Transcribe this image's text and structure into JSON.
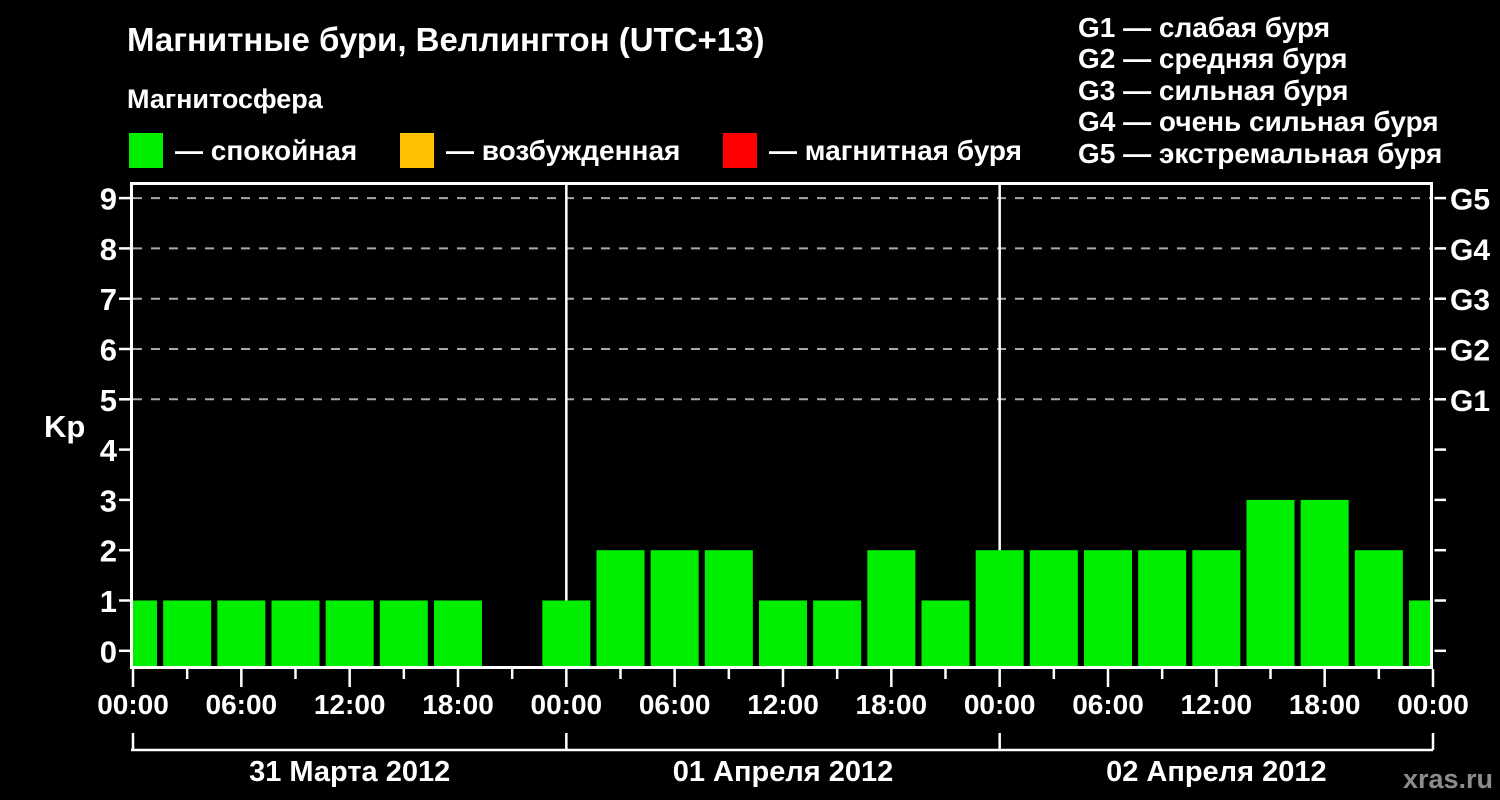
{
  "title": "Магнитные бури, Веллингтон (UTC+13)",
  "subtitle": "Магнитосфера",
  "legend": {
    "items": [
      {
        "label": "— спокойная",
        "color": "#00EE00"
      },
      {
        "label": "— возбужденная",
        "color": "#FFC000"
      },
      {
        "label": "— магнитная буря",
        "color": "#FF0000"
      }
    ]
  },
  "storm_scale": {
    "items": [
      "G1 — слабая буря",
      "G2 — средняя буря",
      "G3 — сильная буря",
      "G4 — очень сильная буря",
      "G5 — экстремальная буря"
    ]
  },
  "watermark": "xras.ru",
  "chart_data": {
    "type": "bar",
    "title": "Магнитные бури, Веллингтон (UTC+13)",
    "ylabel": "Kp",
    "ylim": [
      0,
      9
    ],
    "y_ticks": [
      0,
      1,
      2,
      3,
      4,
      5,
      6,
      7,
      8,
      9
    ],
    "gridline_kp_levels": [
      5,
      6,
      7,
      8,
      9
    ],
    "right_axis_labels": [
      {
        "kp": 5,
        "label": "G1"
      },
      {
        "kp": 6,
        "label": "G2"
      },
      {
        "kp": 7,
        "label": "G3"
      },
      {
        "kp": 8,
        "label": "G4"
      },
      {
        "kp": 9,
        "label": "G5"
      }
    ],
    "x_hours_total": 72,
    "x_hours_step": 3,
    "kp_values": [
      1,
      1,
      1,
      1,
      1,
      1,
      1,
      null,
      1,
      2,
      2,
      2,
      1,
      1,
      2,
      1,
      2,
      2,
      2,
      2,
      2,
      3,
      3,
      2,
      1
    ],
    "time_tick_labels": [
      "00:00",
      "06:00",
      "12:00",
      "18:00",
      "00:00",
      "06:00",
      "12:00",
      "18:00",
      "00:00",
      "06:00",
      "12:00",
      "18:00",
      "00:00"
    ],
    "day_labels": [
      "31 Марта 2012",
      "01 Апреля 2012",
      "02 Апреля 2012"
    ],
    "day_boundaries_hours": [
      0,
      24,
      48,
      72
    ],
    "bar_color": "#00EE00",
    "colors": {
      "axis": "#FFFFFF",
      "grid": "#A9A9A9",
      "background": "#000000",
      "day_divider": "#FFFFFF"
    },
    "legend_position": "top",
    "grid": "dashed-horizontal-storm-levels-only"
  }
}
